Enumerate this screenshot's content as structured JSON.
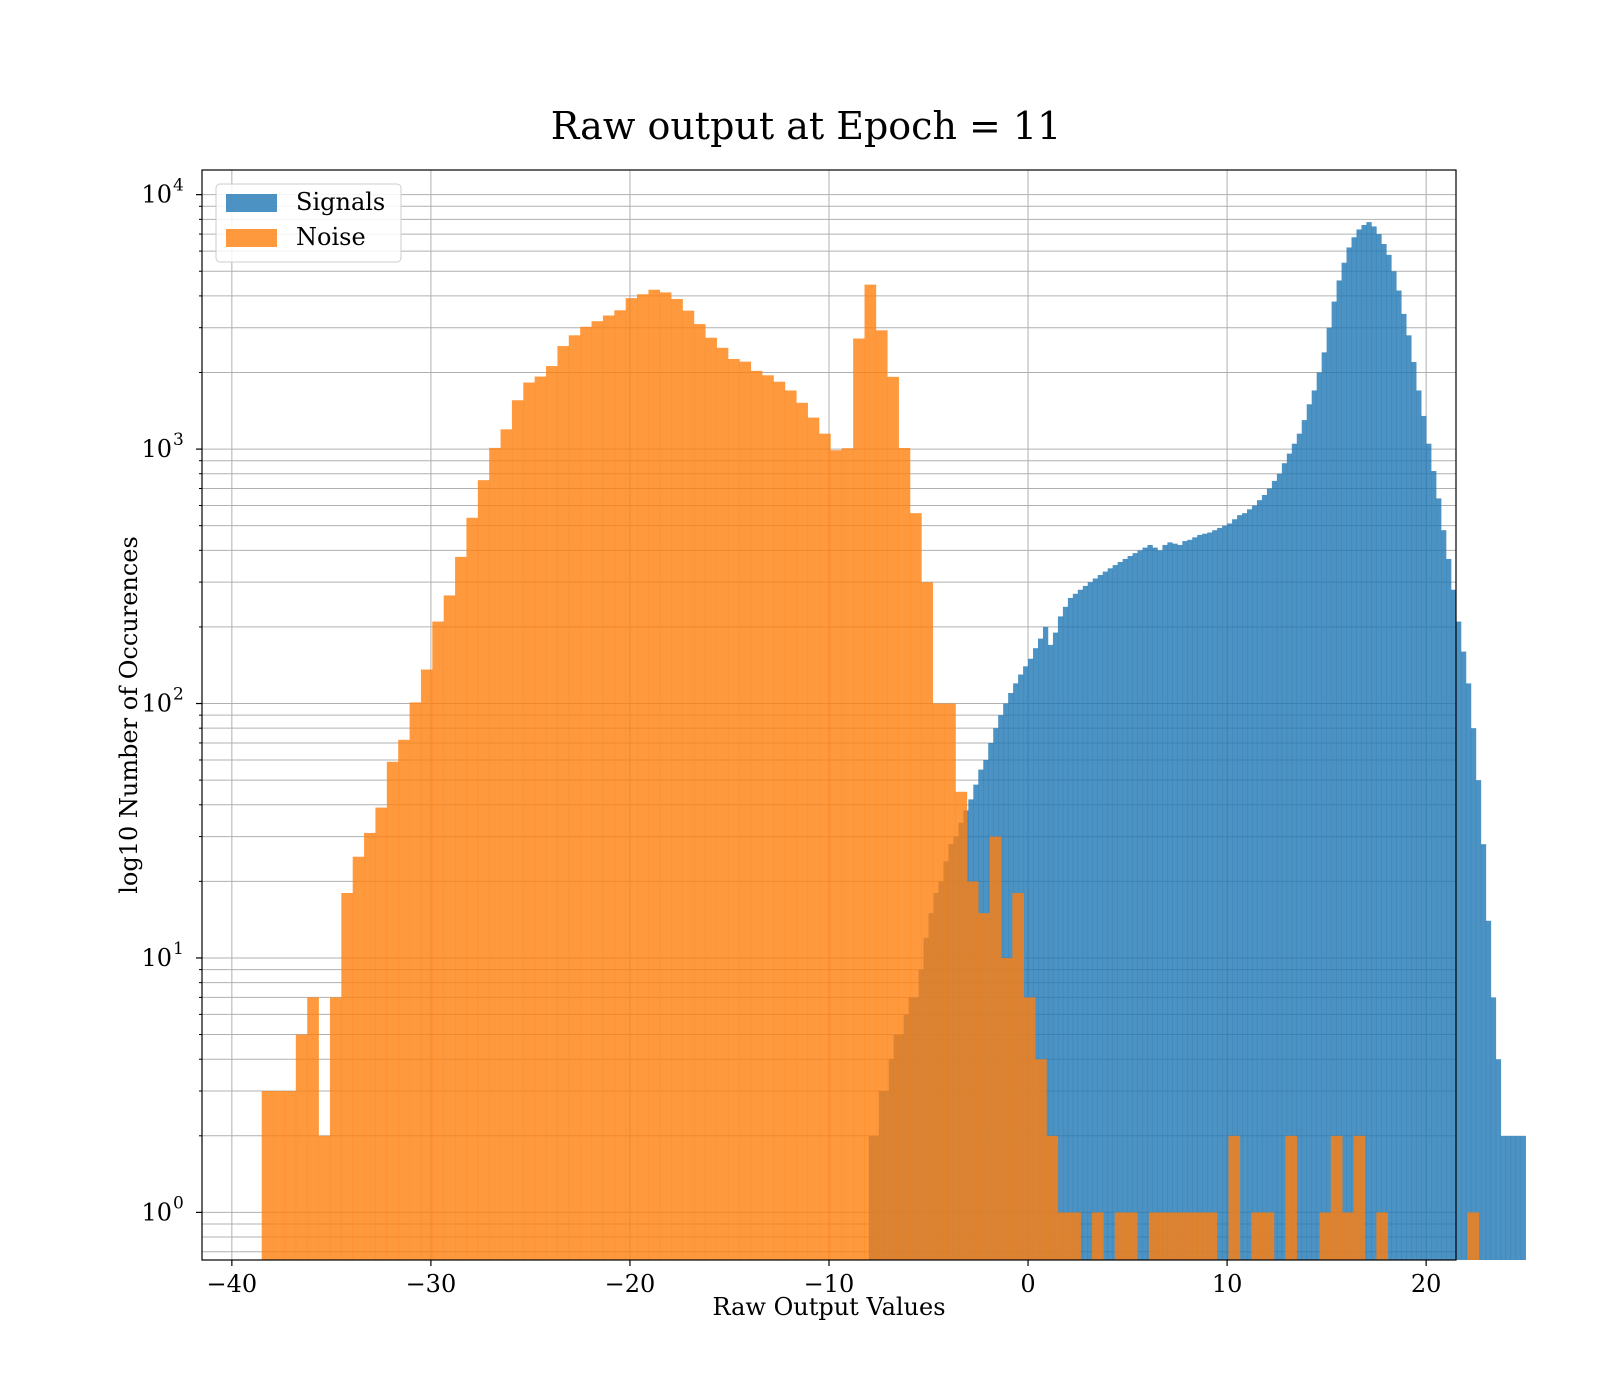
{
  "chart_data": {
    "type": "bar",
    "title": "Raw output at Epoch = 11",
    "xlabel": "Raw Output Values",
    "ylabel": "log10 Number of Occurences",
    "xlim": [
      -41.5,
      21.5
    ],
    "ylim": [
      0.65,
      12500
    ],
    "yscale": "log",
    "grid": true,
    "legend": {
      "position": "top-left"
    },
    "xticks": [
      -40,
      -30,
      -20,
      -10,
      0,
      10,
      20
    ],
    "xtick_labels": [
      "−40",
      "−30",
      "−20",
      "−10",
      "0",
      "10",
      "20"
    ],
    "yticks": [
      1,
      10,
      100,
      1000,
      10000
    ],
    "ytick_labels": [
      {
        "base": "10",
        "exp": "0"
      },
      {
        "base": "10",
        "exp": "1"
      },
      {
        "base": "10",
        "exp": "2"
      },
      {
        "base": "10",
        "exp": "3"
      },
      {
        "base": "10",
        "exp": "4"
      }
    ],
    "series": [
      {
        "name": "Signals",
        "color": "#1f77b4",
        "opacity": 0.8,
        "bin_start": -8.0,
        "bin_width": 0.25,
        "counts": [
          2,
          2,
          3,
          3,
          4,
          5,
          5,
          6,
          7,
          7,
          9,
          12,
          15,
          18,
          20,
          24,
          28,
          30,
          34,
          38,
          42,
          48,
          55,
          60,
          70,
          80,
          90,
          100,
          110,
          120,
          130,
          140,
          150,
          165,
          180,
          200,
          170,
          190,
          220,
          240,
          260,
          270,
          280,
          290,
          300,
          310,
          320,
          330,
          340,
          350,
          360,
          370,
          380,
          390,
          400,
          410,
          420,
          410,
          400,
          420,
          430,
          425,
          420,
          435,
          440,
          450,
          460,
          465,
          470,
          480,
          490,
          500,
          510,
          530,
          550,
          560,
          580,
          600,
          630,
          660,
          700,
          750,
          800,
          880,
          960,
          1050,
          1150,
          1300,
          1500,
          1700,
          2000,
          2400,
          3000,
          3800,
          4600,
          5400,
          6200,
          6800,
          7300,
          7600,
          7800,
          7500,
          7000,
          6400,
          5800,
          5000,
          4200,
          3400,
          2800,
          2200,
          1700,
          1350,
          1050,
          820,
          640,
          480,
          370,
          280,
          210,
          160,
          120,
          80,
          50,
          28,
          14,
          7,
          4,
          2,
          2,
          2,
          2,
          2
        ]
      },
      {
        "name": "Noise",
        "color": "#ff7f0e",
        "opacity": 0.8,
        "bin_start": -38.5,
        "bin_width": 0.5714,
        "counts": [
          3,
          3,
          3,
          5,
          7,
          2,
          7,
          18,
          25,
          31,
          39,
          59,
          72,
          101,
          136,
          210,
          266,
          377,
          537,
          755,
          1011,
          1196,
          1556,
          1827,
          1928,
          2120,
          2541,
          2800,
          3024,
          3182,
          3350,
          3512,
          3920,
          4060,
          4230,
          4130,
          3890,
          3500,
          3100,
          2740,
          2500,
          2260,
          2207,
          2030,
          1950,
          1840,
          1700,
          1520,
          1330,
          1150,
          990,
          1008,
          2720,
          4430,
          2930,
          1923,
          1010,
          560,
          300,
          100,
          100,
          45,
          20,
          15,
          30,
          10,
          18,
          7,
          4,
          2,
          1,
          1,
          0,
          1,
          0,
          1,
          1,
          0,
          1,
          1,
          1,
          1,
          1,
          1,
          0,
          2,
          0,
          1,
          1,
          0,
          2,
          0,
          0,
          1,
          2,
          1,
          2,
          0,
          1,
          0,
          0,
          0,
          0,
          0,
          0,
          0,
          1,
          0
        ]
      }
    ]
  }
}
